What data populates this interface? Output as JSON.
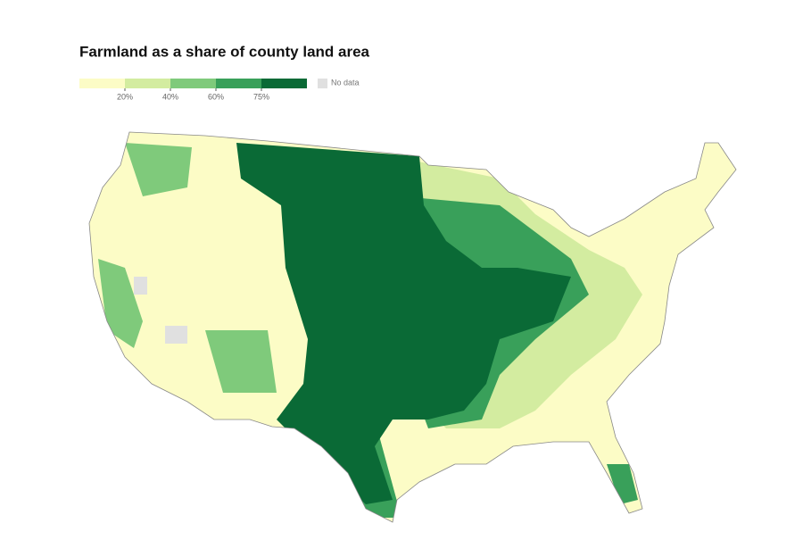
{
  "title": "Farmland as a share of county land area",
  "legend": {
    "colors": [
      "#fcfcc6",
      "#d3eca0",
      "#7fca7b",
      "#39a05a",
      "#0a6a36"
    ],
    "ticks": [
      {
        "value": 20,
        "label": "20%"
      },
      {
        "value": 40,
        "label": "40%"
      },
      {
        "value": 60,
        "label": "60%"
      },
      {
        "value": 75,
        "label": "75%"
      }
    ],
    "no_data": {
      "label": "No data",
      "color": "#e0e0e0"
    }
  }
}
